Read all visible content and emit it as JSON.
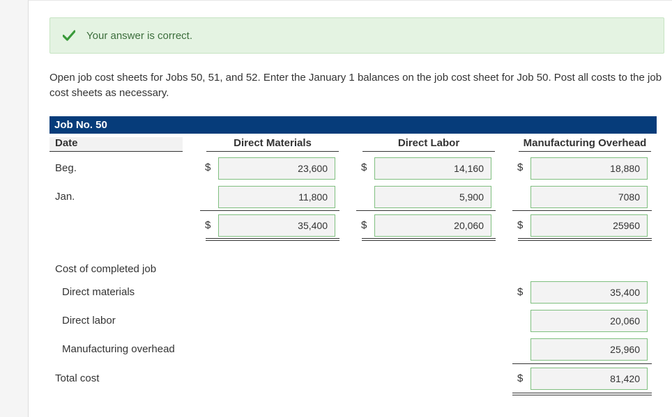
{
  "feedback": {
    "message": "Your answer is correct."
  },
  "instructions": "Open job cost sheets for Jobs 50, 51, and 52. Enter the January 1 balances on the job cost sheet for Job 50. Post all costs to the job cost sheets as necessary.",
  "job": {
    "title": "Job No. 50",
    "columns": {
      "date": "Date",
      "direct_materials": "Direct Materials",
      "direct_labor": "Direct Labor",
      "overhead": "Manufacturing Overhead"
    },
    "currency": "$",
    "rows": {
      "beg": {
        "label": "Beg.",
        "dm": "23,600",
        "dl": "14,160",
        "oh": "18,880"
      },
      "jan": {
        "label": "Jan.",
        "dm": "11,800",
        "dl": "5,900",
        "oh": "7080"
      },
      "total": {
        "dm": "35,400",
        "dl": "20,060",
        "oh": "25960"
      }
    }
  },
  "completed": {
    "title": "Cost of completed job",
    "direct_materials": {
      "label": "Direct materials",
      "value": "35,400"
    },
    "direct_labor": {
      "label": "Direct labor",
      "value": "20,060"
    },
    "overhead": {
      "label": "Manufacturing overhead",
      "value": "25,960"
    },
    "total": {
      "label": "Total cost",
      "value": "81,420"
    }
  },
  "colors": {
    "header_bar": "#063c7a",
    "success_bg": "#e4f3e2",
    "check": "#3a9a3a"
  }
}
